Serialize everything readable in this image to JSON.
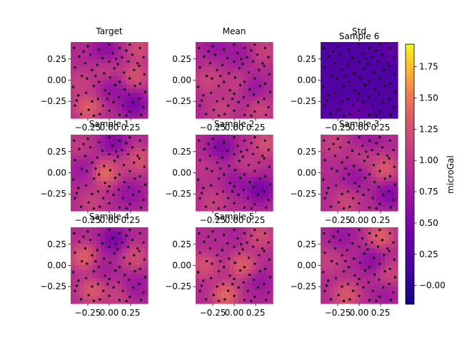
{
  "figure": {
    "colormap": "plasma",
    "colorbar": {
      "label": "microGal",
      "range": [
        -0.15,
        1.93
      ],
      "ticks": [
        -0.0,
        0.25,
        0.5,
        0.75,
        1.0,
        1.25,
        1.5,
        1.75
      ],
      "tick_labels": [
        "−0.00",
        "0.25",
        "0.50",
        "0.75",
        "1.00",
        "1.25",
        "1.50",
        "1.75"
      ]
    }
  },
  "chart_data": [
    {
      "type": "heatmap",
      "title": "Target",
      "xlim": [
        -0.45,
        0.45
      ],
      "ylim": [
        -0.45,
        0.45
      ],
      "xticks": [
        -0.25,
        0.0,
        0.25
      ],
      "xtick_labels": [
        "−0.25",
        "0.00",
        "0.25"
      ],
      "yticks": [
        0.25,
        0.0,
        -0.25
      ],
      "ytick_labels": [
        "0.25",
        "0.00",
        "−0.25"
      ],
      "field_peaks": [
        [
          -0.25,
          -0.33,
          1.8
        ],
        [
          0.3,
          0.05,
          1.6
        ],
        [
          0.35,
          0.38,
          1.5
        ],
        [
          -0.05,
          0.12,
          1.2
        ],
        [
          -0.35,
          -0.05,
          1.3
        ]
      ],
      "field_lows": [
        [
          0.28,
          -0.28,
          0.1
        ],
        [
          -0.05,
          0.35,
          0.35
        ],
        [
          0.05,
          -0.1,
          0.45
        ]
      ]
    },
    {
      "type": "heatmap",
      "title": "Mean",
      "xlim": [
        -0.45,
        0.45
      ],
      "ylim": [
        -0.45,
        0.45
      ],
      "xticks": [
        -0.25,
        0.0,
        0.25
      ],
      "xtick_labels": [
        "−0.25",
        "0.00",
        "0.25"
      ],
      "yticks": [
        0.25,
        0.0,
        -0.25
      ],
      "ytick_labels": [
        "0.25",
        "0.00",
        "−0.25"
      ],
      "field_peaks": [
        [
          -0.3,
          0.0,
          1.4
        ],
        [
          0.3,
          -0.35,
          1.4
        ],
        [
          0.05,
          -0.05,
          1.3
        ],
        [
          0.35,
          0.35,
          1.3
        ],
        [
          -0.15,
          -0.35,
          1.3
        ]
      ],
      "field_lows": [
        [
          0.2,
          -0.1,
          0.45
        ],
        [
          -0.2,
          0.4,
          0.5
        ],
        [
          0.05,
          0.3,
          0.55
        ]
      ]
    },
    {
      "type": "heatmap",
      "title": "Std",
      "extra_title": "Sample 6",
      "xlim": [
        -0.45,
        0.45
      ],
      "ylim": [
        -0.45,
        0.45
      ],
      "xticks": [
        -0.25,
        0.0,
        0.25
      ],
      "xtick_labels": [
        "−0.25",
        "0.00",
        "0.25"
      ],
      "yticks": [
        0.25,
        0.0,
        -0.25
      ],
      "ytick_labels": [
        "0.25",
        "0.00",
        "−0.25"
      ],
      "base": 0.2,
      "field_peaks": [
        [
          -0.05,
          -0.38,
          0.55
        ],
        [
          0.38,
          0.35,
          0.4
        ],
        [
          -0.38,
          -0.3,
          0.35
        ]
      ],
      "field_lows": []
    },
    {
      "type": "heatmap",
      "title": "Sample 1",
      "xlim": [
        -0.45,
        0.45
      ],
      "ylim": [
        -0.45,
        0.45
      ],
      "xticks": [
        -0.25,
        0.0,
        0.25
      ],
      "xtick_labels": [
        "−0.25",
        "0.00",
        "0.25"
      ],
      "yticks": [
        0.25,
        0.0,
        -0.25
      ],
      "ytick_labels": [
        "0.25",
        "0.00",
        "−0.25"
      ],
      "field_peaks": [
        [
          -0.05,
          0.0,
          1.95
        ],
        [
          0.35,
          0.15,
          1.6
        ],
        [
          -0.2,
          -0.35,
          1.3
        ],
        [
          0.1,
          0.1,
          1.2
        ],
        [
          -0.35,
          0.3,
          1.2
        ]
      ],
      "field_lows": [
        [
          0.05,
          0.35,
          0.25
        ],
        [
          0.25,
          -0.25,
          0.45
        ],
        [
          -0.3,
          0.05,
          0.55
        ]
      ]
    },
    {
      "type": "heatmap",
      "title": "Sample 2",
      "xlim": [
        -0.45,
        0.45
      ],
      "ylim": [
        -0.45,
        0.45
      ],
      "xticks": [
        -0.25,
        0.0,
        0.25
      ],
      "xtick_labels": [
        "−0.25",
        "0.00",
        "0.25"
      ],
      "yticks": [
        0.25,
        0.0,
        -0.25
      ],
      "ytick_labels": [
        "0.25",
        "0.00",
        "−0.25"
      ],
      "field_peaks": [
        [
          0.38,
          0.35,
          1.6
        ],
        [
          -0.25,
          -0.35,
          1.3
        ],
        [
          0.15,
          0.1,
          1.2
        ],
        [
          -0.35,
          0.05,
          1.1
        ]
      ],
      "field_lows": [
        [
          0.3,
          -0.2,
          0.05
        ],
        [
          -0.15,
          0.3,
          0.2
        ],
        [
          0.05,
          -0.1,
          0.45
        ]
      ]
    },
    {
      "type": "heatmap",
      "title": "Sample 3",
      "xlim": [
        -0.45,
        0.45
      ],
      "ylim": [
        -0.45,
        0.45
      ],
      "xticks": [
        -0.25,
        0.0,
        0.25
      ],
      "xtick_labels": [
        "−0.25",
        "0.00",
        "0.25"
      ],
      "yticks": [
        0.25,
        0.0,
        -0.25
      ],
      "ytick_labels": [
        "0.25",
        "0.00",
        "−0.25"
      ],
      "field_peaks": [
        [
          0.3,
          0.05,
          1.7
        ],
        [
          -0.15,
          -0.35,
          1.4
        ],
        [
          -0.3,
          0.35,
          1.3
        ],
        [
          0.05,
          0.2,
          1.2
        ]
      ],
      "field_lows": [
        [
          0.35,
          -0.25,
          0.2
        ],
        [
          -0.05,
          -0.05,
          0.5
        ],
        [
          0.1,
          0.38,
          0.55
        ]
      ]
    },
    {
      "type": "heatmap",
      "title": "Sample 4",
      "xlim": [
        -0.45,
        0.45
      ],
      "ylim": [
        -0.45,
        0.45
      ],
      "xticks": [
        -0.25,
        0.0,
        0.25
      ],
      "xtick_labels": [
        "−0.25",
        "0.00",
        "0.25"
      ],
      "yticks": [
        0.25,
        0.0,
        -0.25
      ],
      "ytick_labels": [
        "0.25",
        "0.00",
        "−0.25"
      ],
      "field_peaks": [
        [
          -0.3,
          0.1,
          1.8
        ],
        [
          -0.2,
          -0.3,
          1.7
        ],
        [
          0.3,
          0.1,
          1.5
        ],
        [
          0.1,
          -0.35,
          1.3
        ]
      ],
      "field_lows": [
        [
          0.05,
          0.3,
          0.1
        ],
        [
          0.3,
          -0.25,
          0.5
        ],
        [
          -0.05,
          -0.05,
          0.7
        ]
      ]
    },
    {
      "type": "heatmap",
      "title": "Sample 5",
      "xlim": [
        -0.45,
        0.45
      ],
      "ylim": [
        -0.45,
        0.45
      ],
      "xticks": [
        -0.25,
        0.0,
        0.25
      ],
      "xtick_labels": [
        "−0.25",
        "0.00",
        "0.25"
      ],
      "yticks": [
        0.25,
        0.0,
        -0.25
      ],
      "ytick_labels": [
        "0.25",
        "0.00",
        "−0.25"
      ],
      "field_peaks": [
        [
          -0.1,
          -0.35,
          1.9
        ],
        [
          0.1,
          0.0,
          1.8
        ],
        [
          -0.35,
          0.0,
          1.6
        ],
        [
          0.3,
          0.35,
          1.5
        ]
      ],
      "field_lows": [
        [
          0.3,
          -0.2,
          0.55
        ],
        [
          0.0,
          0.38,
          0.75
        ],
        [
          -0.2,
          0.3,
          0.9
        ]
      ]
    },
    {
      "type": "heatmap",
      "title": "",
      "xlim": [
        -0.45,
        0.45
      ],
      "ylim": [
        -0.45,
        0.45
      ],
      "xticks": [
        -0.25,
        0.0,
        0.25
      ],
      "xtick_labels": [
        "−0.25",
        "0.00",
        "0.25"
      ],
      "yticks": [
        0.25,
        0.0,
        -0.25
      ],
      "ytick_labels": [
        "0.25",
        "0.00",
        "−0.25"
      ],
      "field_peaks": [
        [
          0.25,
          0.35,
          1.8
        ],
        [
          -0.15,
          -0.35,
          1.7
        ],
        [
          0.35,
          -0.1,
          1.4
        ],
        [
          -0.35,
          0.05,
          1.3
        ]
      ],
      "field_lows": [
        [
          0.15,
          0.05,
          0.35
        ],
        [
          -0.2,
          0.35,
          0.5
        ],
        [
          0.3,
          -0.35,
          0.6
        ]
      ]
    }
  ],
  "observation_points": [
    [
      -0.41,
      0.38
    ],
    [
      -0.35,
      0.28
    ],
    [
      -0.4,
      0.15
    ],
    [
      -0.32,
      0.05
    ],
    [
      -0.42,
      -0.08
    ],
    [
      -0.36,
      -0.18
    ],
    [
      -0.4,
      -0.3
    ],
    [
      -0.33,
      -0.4
    ],
    [
      -0.25,
      0.4
    ],
    [
      -0.22,
      0.3
    ],
    [
      -0.28,
      0.2
    ],
    [
      -0.2,
      0.12
    ],
    [
      -0.26,
      0.02
    ],
    [
      -0.18,
      -0.07
    ],
    [
      -0.27,
      -0.15
    ],
    [
      -0.2,
      -0.25
    ],
    [
      -0.24,
      -0.35
    ],
    [
      -0.18,
      -0.42
    ],
    [
      -0.12,
      0.36
    ],
    [
      -0.08,
      0.26
    ],
    [
      -0.14,
      0.18
    ],
    [
      -0.06,
      0.08
    ],
    [
      -0.12,
      -0.02
    ],
    [
      -0.05,
      -0.12
    ],
    [
      -0.13,
      -0.22
    ],
    [
      -0.07,
      -0.3
    ],
    [
      -0.11,
      -0.4
    ],
    [
      0.0,
      0.42
    ],
    [
      0.04,
      0.32
    ],
    [
      0.0,
      0.22
    ],
    [
      0.06,
      0.14
    ],
    [
      0.01,
      0.03
    ],
    [
      0.07,
      -0.06
    ],
    [
      0.0,
      -0.16
    ],
    [
      0.05,
      -0.26
    ],
    [
      0.0,
      -0.36
    ],
    [
      0.12,
      0.38
    ],
    [
      0.15,
      0.27
    ],
    [
      0.1,
      0.19
    ],
    [
      0.17,
      0.09
    ],
    [
      0.12,
      -0.02
    ],
    [
      0.18,
      -0.11
    ],
    [
      0.11,
      -0.2
    ],
    [
      0.16,
      -0.3
    ],
    [
      0.12,
      -0.41
    ],
    [
      0.24,
      0.42
    ],
    [
      0.27,
      0.3
    ],
    [
      0.22,
      0.22
    ],
    [
      0.29,
      0.12
    ],
    [
      0.24,
      0.02
    ],
    [
      0.3,
      -0.07
    ],
    [
      0.23,
      -0.17
    ],
    [
      0.28,
      -0.26
    ],
    [
      0.24,
      -0.37
    ],
    [
      0.36,
      0.38
    ],
    [
      0.4,
      0.27
    ],
    [
      0.35,
      0.17
    ],
    [
      0.41,
      0.07
    ],
    [
      0.36,
      -0.04
    ],
    [
      0.42,
      -0.14
    ],
    [
      0.35,
      -0.22
    ],
    [
      0.4,
      -0.32
    ],
    [
      0.37,
      -0.41
    ],
    [
      -0.3,
      0.34
    ],
    [
      0.2,
      0.35
    ],
    [
      -0.16,
      0.05
    ],
    [
      0.33,
      0.2
    ],
    [
      -0.02,
      -0.22
    ],
    [
      0.08,
      0.25
    ],
    [
      -0.38,
      -0.24
    ],
    [
      0.2,
      -0.42
    ]
  ]
}
